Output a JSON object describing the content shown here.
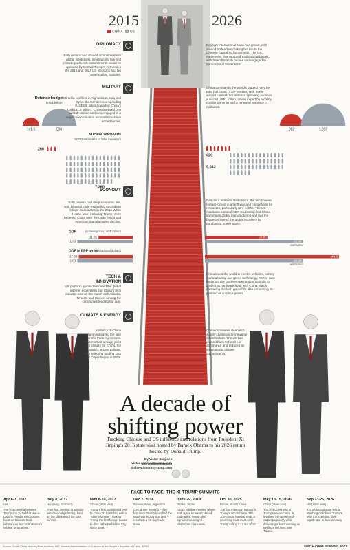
{
  "header": {
    "year_left": "2015",
    "year_right": "2026",
    "legend": [
      "CHINA",
      "US"
    ]
  },
  "sections": [
    {
      "title": "DIPLOMACY",
      "left": "Both nations had shared commitments to global institutions, international law and climate pacts. US commitments would be upended by Donald Trump's victories in the 2016 and 2024 US elections and his \"America first\" policies.",
      "right": "Beijing's international sway has grown, with around 20 leaders making the trip to the Chinese capital so far this year. The US, meanwhile, has ruptured traditional alliances, withdrawn from UN bodies and engaged in transactional bilateralism."
    },
    {
      "title": "MILITARY",
      "left": "Mired in conflicts in Afghanistan, Iraq and Syria, the US' defence spending (US$598 billion) dwarfed China's (US$141.5 billion). China operated one aircraft carrier, and was engaged in a major modernisation across its massive armed forces.",
      "right": "China commands the world's biggest navy by total hull count (370+ vessels) with three aircraft carriers. US defence spending exceeds a record US$1 trillion, driven in part by a costly conflict with Iran and a renewed embrace of militarism."
    },
    {
      "title": "ECONOMY",
      "left": "Both powers had deep economic ties, with bilateral trade expanding to US$598 billion. Candidates in the 2016 White House race, including Trump, were targeting China over the trade deficit and American manufacturing decline.",
      "right": "Despite a tentative trade truce, the two powers remain locked in a tariff war and competition for resources, particularly rare earths. The US maintains nominal GDP leadership, but China dominates global manufacturing and has the biggest share of the global economy by purchasing power parity."
    },
    {
      "title": "TECH & INNOVATION",
      "left": "US platform giants dominated the global internet ecosystem, but China's tech industry was on the march with Alibaba, Tencent and Huawei among the companies leading the way.",
      "right": "China leads the world in electric vehicles, battery manufacturing and green technology. As the race heats up, the US leverages export controls to protect its hardware lead, with China rapidly narrowing the tech gap while also cementing its position as a space power."
    },
    {
      "title": "CLIMATE & ENERGY",
      "left": "Historic US-China alignment paved the way for the Paris Agreement. This marked a major pivot on climate for China, the world's largest polluter, after rejecting binding cuts at Copenhagen in 2009.",
      "right": "China dominates cleantech supply chains and renewable infrastructure. The US has pivoted back to fossil fuel dominance and reduced its international climate commitments."
    }
  ],
  "defence_budget": {
    "title": "Defence budget",
    "unit": "(US$ billion)",
    "left": [
      141.5,
      598
    ],
    "right": [
      282,
      {
        "value": 1010,
        "label": "1,010"
      }
    ]
  },
  "nuclear": {
    "title": "Nuclear warheads",
    "note": "SIPRI estimates of total inventory",
    "left": [
      260,
      {
        "value": 7260,
        "label": "7,260"
      }
    ],
    "right": [
      620,
      {
        "value": 5042,
        "label": "5,042"
      }
    ]
  },
  "gdp": {
    "title": "GDP",
    "unit": "(current prices, US$ trillion)",
    "left": [
      11.31,
      18.3
    ],
    "right": [
      20.85,
      32.38
    ],
    "estimate": "estimated"
  },
  "ppp": {
    "title": "GDP in PPP terms",
    "unit": "(international dollars)",
    "left": [
      17.84,
      18.3
    ],
    "right": [
      44.3,
      32.38
    ],
    "estimate": "estimated"
  },
  "headline": {
    "line1": "A decade of",
    "line2": "shifting power"
  },
  "subtitle": "Tracking Chinese and US influence and relations from President Xi Jinping's 2015 state visit hosted by Barack Obama to his 2026 return hosted by Donald Trump.",
  "byline": {
    "line1": "By Victor Sanjinez victor.sanjinez@scmp.com",
    "line2": "and Andrew London andrew.london@scmp.com"
  },
  "timeline": {
    "heading": "FACE TO FACE: THE XI-TRUMP SUMMITS",
    "items": [
      {
        "date": "Apr 6-7, 2017",
        "place": "US",
        "text": "The first meeting between Trump and Xi, held at Mar-a-Lago in Florida. Discussions focus on bilateral trade imbalances and North Korea's nuclear programme."
      },
      {
        "date": "July 8, 2017",
        "place": "Hamburg, Germany",
        "text": "Their first meeting at a major international gathering, held on the sidelines of the G20 summit."
      },
      {
        "date": "Nov 8-10, 2017",
        "place": "China (state visit)",
        "text": "Trump's first presidential visit to China. Xi hosts him with a \"state visit-plus\", making Trump the first foreign leader to dine in the Forbidden City since 1949."
      },
      {
        "date": "Dec 2, 2018",
        "place": "Buenos Aires, Argentina",
        "text": "G20 dinner meeting – their first since Trump launched the trade war in July that year – results in a 90-day trade truce."
      },
      {
        "date": "June 29, 2019",
        "place": "Osaka, Japan",
        "text": "A G20 sideline meeting where both agree to restart stalled trade talks. Trump also signals an easing of restrictions on Huawei."
      },
      {
        "date": "Oct 30, 2025",
        "place": "Busan, South Korea",
        "text": "The first in-person summit of Trump's second term. The 100-minute meeting ends a year-long trade truce, with Trump calling it 12 out of 10."
      },
      {
        "date": "May 13-15, 2026",
        "place": "China (state visit)",
        "text": "The first China visit of Trump's second term. Xi lavishes Trump with red-carpet pageantry while delivering a blunt warning on Beijing's red lines over Taiwan."
      },
      {
        "date": "Sep 23-25, 2026",
        "place": "US (state visit)",
        "text": "Xi's reciprocal state visit to Washington follows Trump's May trip to Beijing, their eighth face-to-face meeting."
      }
    ]
  },
  "footer": {
    "source": "Source: South China Morning Post archives, IMF, General Administration of Customs of the People's Republic of China, SIPRI",
    "brand": "SOUTH CHINA MORNING POST"
  }
}
